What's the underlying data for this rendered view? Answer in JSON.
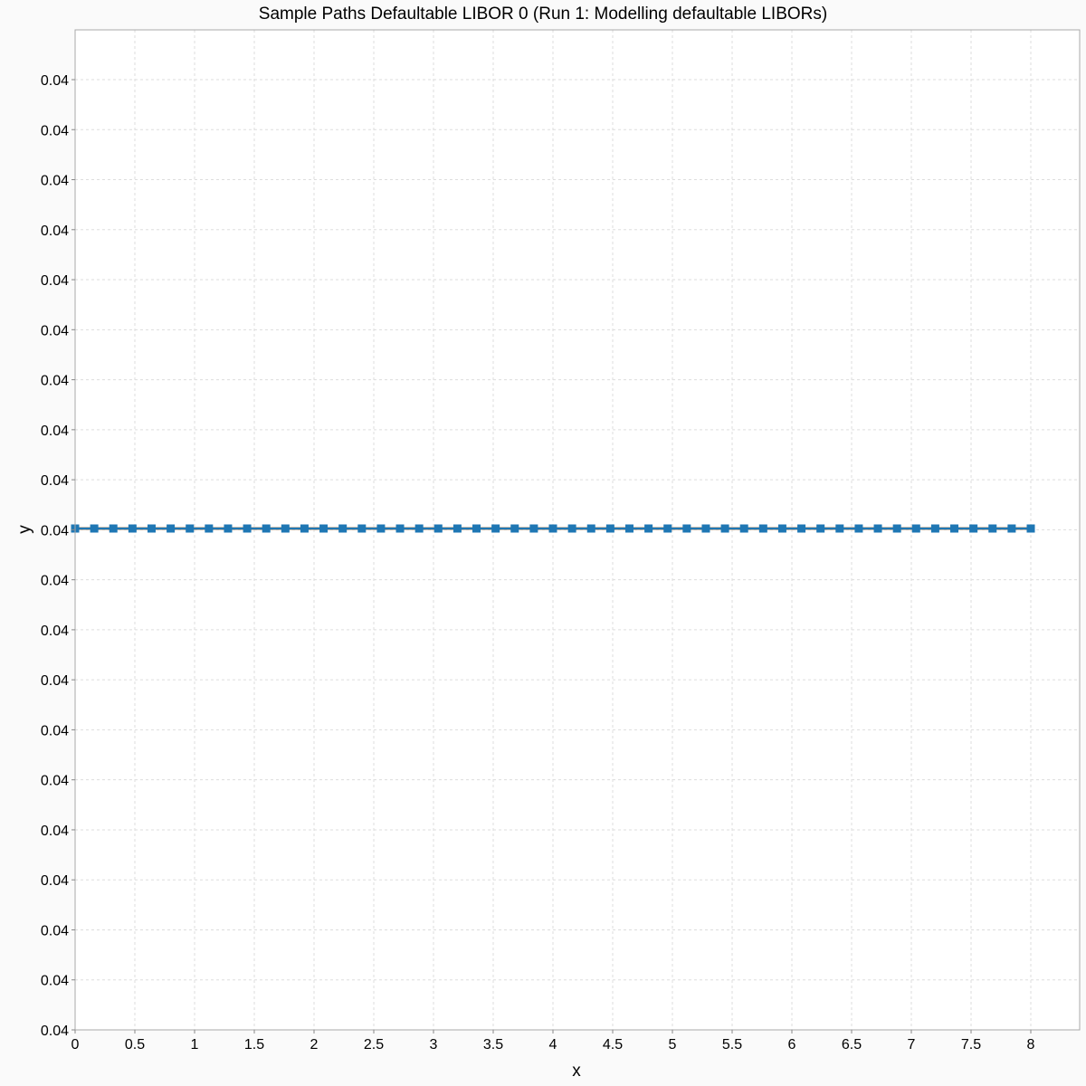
{
  "chart_data": {
    "type": "line",
    "title": "Sample Paths Defaultable LIBOR 0 (Run 1: Modelling defaultable LIBORs)",
    "xlabel": "x",
    "ylabel": "y",
    "xlim": [
      0,
      8.4
    ],
    "x_ticks": [
      "0",
      "0.5",
      "1",
      "1.5",
      "2",
      "2.5",
      "3",
      "3.5",
      "4",
      "4.5",
      "5",
      "5.5",
      "6",
      "6.5",
      "7",
      "7.5",
      "8"
    ],
    "y_ticks": [
      "0.04",
      "0.04",
      "0.04",
      "0.04",
      "0.04",
      "0.04",
      "0.04",
      "0.04",
      "0.04",
      "0.04",
      "0.04",
      "0.04",
      "0.04",
      "0.04",
      "0.04",
      "0.04",
      "0.04",
      "0.04",
      "0.04",
      "0.04"
    ],
    "grid": true,
    "legend": "none",
    "series": [
      {
        "color": "#ff7f0e",
        "marker": "none",
        "x": [
          0,
          0.16,
          0.32,
          0.48,
          0.64,
          0.8,
          0.96,
          1.12,
          1.28,
          1.44,
          1.6,
          1.76,
          1.92,
          2.08,
          2.24,
          2.4,
          2.56,
          2.72,
          2.88,
          3.04,
          3.2,
          3.36,
          3.52,
          3.68,
          3.84,
          4.0,
          4.16,
          4.32,
          4.48,
          4.64,
          4.8,
          4.96,
          5.12,
          5.28,
          5.44,
          5.6,
          5.76,
          5.92,
          6.08,
          6.24,
          6.4,
          6.56,
          6.72,
          6.88,
          7.04,
          7.2,
          7.36,
          7.52,
          7.68,
          7.84,
          8.0
        ],
        "y": [
          0.04,
          0.04,
          0.04,
          0.04,
          0.04,
          0.04,
          0.04,
          0.04,
          0.04,
          0.04,
          0.04,
          0.04,
          0.04,
          0.04,
          0.04,
          0.04,
          0.04,
          0.04,
          0.04,
          0.04,
          0.04,
          0.04,
          0.04,
          0.04,
          0.04,
          0.04,
          0.04,
          0.04,
          0.04,
          0.04,
          0.04,
          0.04,
          0.04,
          0.04,
          0.04,
          0.04,
          0.04,
          0.04,
          0.04,
          0.04,
          0.04,
          0.04,
          0.04,
          0.04,
          0.04,
          0.04,
          0.04,
          0.04,
          0.04,
          0.04,
          0.04
        ]
      },
      {
        "color": "#1f77b4",
        "marker": "square",
        "x": [
          0,
          0.16,
          0.32,
          0.48,
          0.64,
          0.8,
          0.96,
          1.12,
          1.28,
          1.44,
          1.6,
          1.76,
          1.92,
          2.08,
          2.24,
          2.4,
          2.56,
          2.72,
          2.88,
          3.04,
          3.2,
          3.36,
          3.52,
          3.68,
          3.84,
          4.0,
          4.16,
          4.32,
          4.48,
          4.64,
          4.8,
          4.96,
          5.12,
          5.28,
          5.44,
          5.6,
          5.76,
          5.92,
          6.08,
          6.24,
          6.4,
          6.56,
          6.72,
          6.88,
          7.04,
          7.2,
          7.36,
          7.52,
          7.68,
          7.84,
          8.0
        ],
        "y": [
          0.04,
          0.04,
          0.04,
          0.04,
          0.04,
          0.04,
          0.04,
          0.04,
          0.04,
          0.04,
          0.04,
          0.04,
          0.04,
          0.04,
          0.04,
          0.04,
          0.04,
          0.04,
          0.04,
          0.04,
          0.04,
          0.04,
          0.04,
          0.04,
          0.04,
          0.04,
          0.04,
          0.04,
          0.04,
          0.04,
          0.04,
          0.04,
          0.04,
          0.04,
          0.04,
          0.04,
          0.04,
          0.04,
          0.04,
          0.04,
          0.04,
          0.04,
          0.04,
          0.04,
          0.04,
          0.04,
          0.04,
          0.04,
          0.04,
          0.04,
          0.04
        ]
      }
    ],
    "colors": {
      "background": "#fafafa",
      "plot_background": "#ffffff",
      "grid": "#dddddd",
      "frame": "#aaaaaa"
    }
  }
}
